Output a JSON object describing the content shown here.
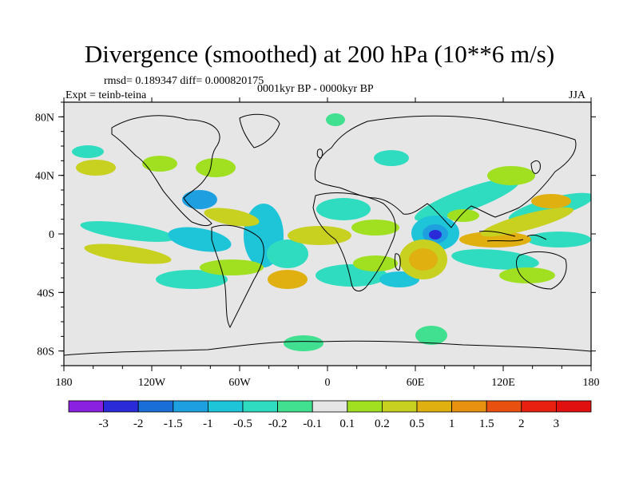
{
  "title": "Divergence (smoothed) at 200 hPa (10**6 m/s)",
  "stats": "rmsd= 0.189347 diff= 0.000820175",
  "expt": "Expt = teinb-teina",
  "period": "0001kyr BP - 0000kyr BP",
  "season": "JJA",
  "map": {
    "projection": "cylindrical-equidistant",
    "lon_range": [
      -180,
      180
    ],
    "lat_range": [
      -90,
      90
    ],
    "lon_ticks": [
      {
        "value": -180,
        "label": "180"
      },
      {
        "value": -120,
        "label": "120W"
      },
      {
        "value": -60,
        "label": "60W"
      },
      {
        "value": 0,
        "label": "0"
      },
      {
        "value": 60,
        "label": "60E"
      },
      {
        "value": 120,
        "label": "120E"
      },
      {
        "value": 180,
        "label": "180"
      }
    ],
    "lat_ticks": [
      {
        "value": 80,
        "label": "80N"
      },
      {
        "value": 40,
        "label": "40N"
      },
      {
        "value": 0,
        "label": "0"
      },
      {
        "value": -40,
        "label": "40S"
      },
      {
        "value": -80,
        "label": "80S"
      }
    ],
    "background_color": "#e6e6e6",
    "features": [
      {
        "name": "anomaly-min-indian-ocean",
        "lon": 72,
        "lat": 0,
        "value": -2.2
      },
      {
        "name": "anomaly-max-arabian-sea",
        "lon": 62,
        "lat": -18,
        "value": 1.1
      },
      {
        "name": "anomaly-max-west-pacific",
        "lon": 150,
        "lat": 22,
        "value": 1.2
      }
    ]
  },
  "legend": {
    "labels": [
      "-3",
      "-2",
      "-1.5",
      "-1",
      "-0.5",
      "-0.2",
      "-0.1",
      "0.1",
      "0.2",
      "0.5",
      "1",
      "1.5",
      "2",
      "3"
    ],
    "colors": [
      "#8a20e0",
      "#2a2ad8",
      "#1a6ed8",
      "#1ea0e0",
      "#1ec4d8",
      "#30dcc0",
      "#40e090",
      "#e6e6e6",
      "#a0e020",
      "#c8d020",
      "#e0b010",
      "#e89010",
      "#e85010",
      "#e82010",
      "#e01010"
    ]
  }
}
